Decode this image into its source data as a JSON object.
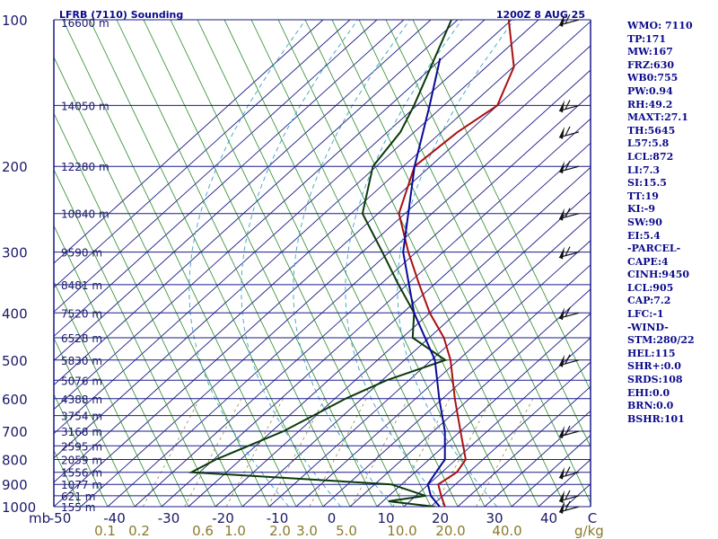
{
  "chart_data": {
    "type": "skew-t sounding",
    "title": "LFRB (7110) Sounding",
    "time_label": "1200Z  8 AUG 25",
    "pressure_unit": "mb",
    "pressure_ticks": [
      "100",
      "200",
      "300",
      "400",
      "500",
      "600",
      "700",
      "800",
      "900",
      "1000"
    ],
    "height_labels": [
      {
        "p": 150,
        "text": "14050 m"
      },
      {
        "p": 200,
        "text": "12280 m"
      },
      {
        "p": 250,
        "text": "10840 m"
      },
      {
        "p": 300,
        "text": "9590 m"
      },
      {
        "p": 350,
        "text": "8481 m"
      },
      {
        "p": 400,
        "text": "7520 m"
      },
      {
        "p": 450,
        "text": "6528 m"
      },
      {
        "p": 500,
        "text": "5830 m"
      },
      {
        "p": 550,
        "text": "5076 m"
      },
      {
        "p": 600,
        "text": "4388 m"
      },
      {
        "p": 650,
        "text": "3754 m"
      },
      {
        "p": 700,
        "text": "3168 m"
      },
      {
        "p": 750,
        "text": "2595 m"
      },
      {
        "p": 800,
        "text": "2059 m"
      },
      {
        "p": 850,
        "text": "1556 m"
      },
      {
        "p": 900,
        "text": "1077 m"
      },
      {
        "p": 950,
        "text": "621 m"
      },
      {
        "p": 1000,
        "text": "155 m"
      }
    ],
    "top_height_label": "16600 m",
    "temperature_ticks": [
      "-50",
      "-40",
      "-30",
      "-20",
      "-10",
      "0",
      "10",
      "20",
      "30",
      "40"
    ],
    "temperature_unit_label": "C",
    "mixing_ratio_ticks": [
      "0.1",
      "0.2",
      "0.6",
      "1.0",
      "2.0",
      "3.0",
      "5.0",
      "10.0",
      "20.0",
      "40.0"
    ],
    "mixing_ratio_unit": "g/kg",
    "series": [
      {
        "name": "",
        "color": "#aa1010",
        "points": [
          [
            100,
            -71
          ],
          [
            125,
            -60
          ],
          [
            150,
            -55
          ],
          [
            170,
            -57
          ],
          [
            200,
            -58
          ],
          [
            250,
            -51
          ],
          [
            300,
            -41
          ],
          [
            350,
            -32
          ],
          [
            400,
            -24
          ],
          [
            450,
            -16
          ],
          [
            500,
            -10
          ],
          [
            600,
            -1
          ],
          [
            700,
            7
          ],
          [
            800,
            14
          ],
          [
            850,
            15
          ],
          [
            900,
            14
          ],
          [
            950,
            17
          ],
          [
            1000,
            20
          ]
        ]
      },
      {
        "name": "",
        "color": "#0a3a0a",
        "points": [
          [
            100,
            -82
          ],
          [
            150,
            -71
          ],
          [
            170,
            -68
          ],
          [
            200,
            -66
          ],
          [
            250,
            -58
          ],
          [
            300,
            -46
          ],
          [
            350,
            -36
          ],
          [
            400,
            -27
          ],
          [
            450,
            -22
          ],
          [
            500,
            -11
          ],
          [
            550,
            -18
          ],
          [
            600,
            -22
          ],
          [
            700,
            -27
          ],
          [
            800,
            -34
          ],
          [
            850,
            -36
          ],
          [
            900,
            5
          ],
          [
            950,
            14
          ],
          [
            975,
            8
          ],
          [
            1000,
            18
          ]
        ]
      },
      {
        "name": "",
        "color": "#0a0a9a",
        "points": [
          [
            120,
            -76
          ],
          [
            150,
            -68
          ],
          [
            200,
            -58
          ],
          [
            300,
            -42
          ],
          [
            400,
            -27
          ],
          [
            500,
            -13
          ],
          [
            600,
            -4
          ],
          [
            700,
            4
          ],
          [
            800,
            10
          ],
          [
            850,
            11
          ],
          [
            900,
            12
          ],
          [
            950,
            15
          ],
          [
            1000,
            19
          ]
        ]
      }
    ],
    "wind_barbs_pressure": [
      100,
      150,
      170,
      200,
      250,
      300,
      400,
      500,
      700,
      850,
      950,
      1000
    ]
  },
  "side_panel": [
    "WMO: 7110",
    "TP:171",
    "MW:167",
    "FRZ:630",
    "WB0:755",
    "PW:0.94",
    "RH:49.2",
    "MAXT:27.1",
    "TH:5645",
    "L57:5.8",
    "LCL:872",
    "LI:7.3",
    "SI:15.5",
    "TT:19",
    "KI:-9",
    "SW:90",
    "EI:5.4",
    "-PARCEL-",
    "CAPE:4",
    "CINH:9450",
    "LCL:905",
    "CAP:7.2",
    "LFC:-1",
    "-WIND-",
    "STM:280/22",
    "HEL:115",
    "SHR+:0.0",
    "SRDS:108",
    "EHI:0.0",
    "BRN:0.0",
    "BSHR:101"
  ]
}
